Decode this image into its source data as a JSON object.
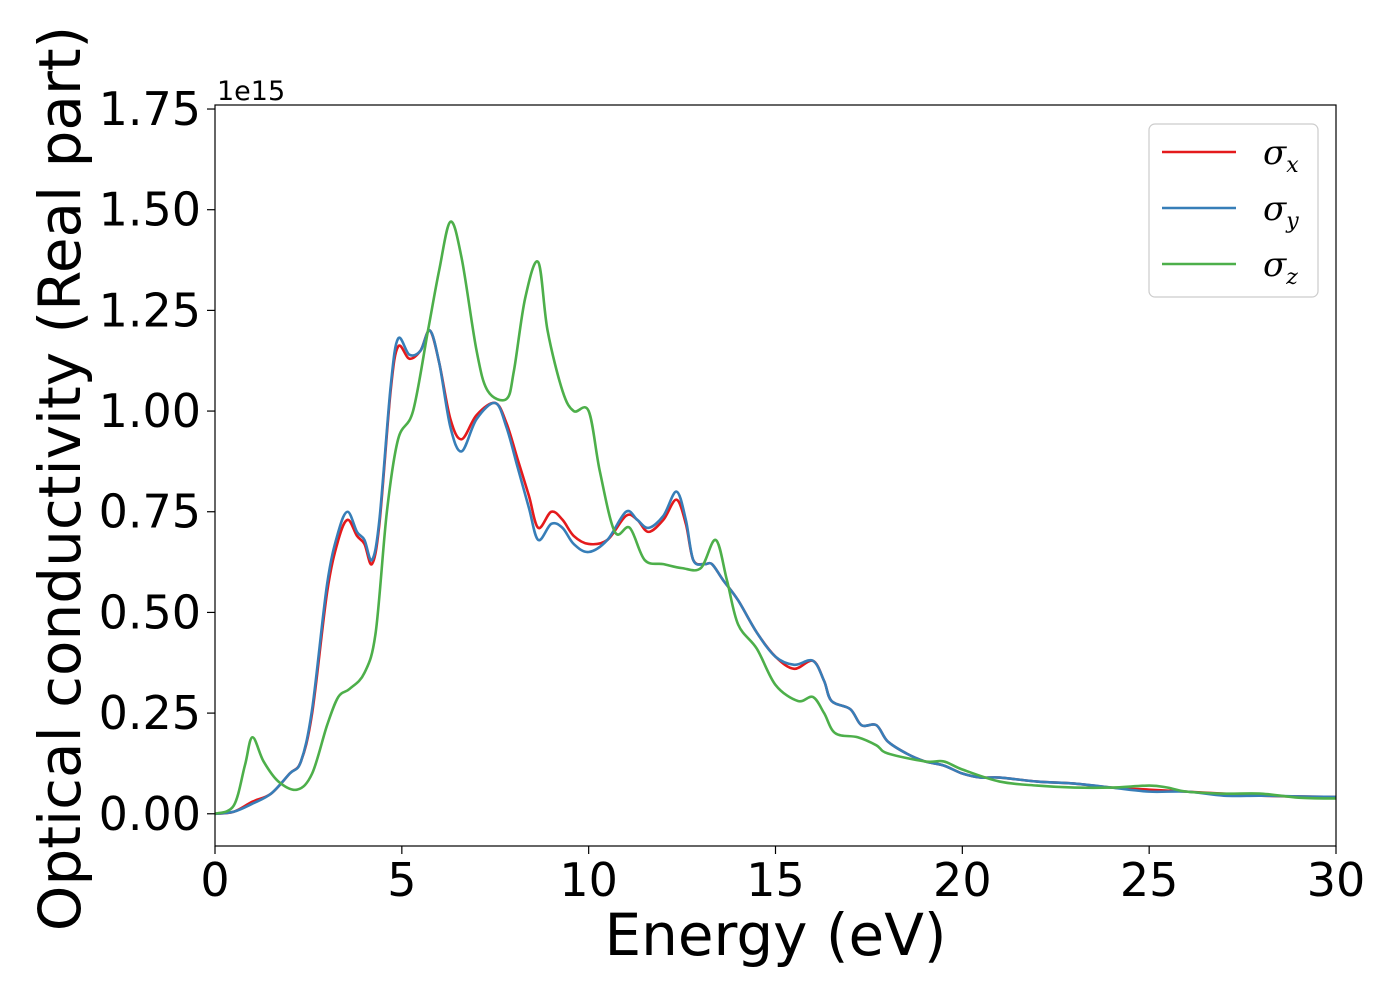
{
  "chart_data": {
    "type": "line",
    "xlabel": "Energy (eV)",
    "ylabel": "Optical conductivity (Real part)",
    "y_offset_text": "1e15",
    "xlim": [
      0,
      30
    ],
    "ylim": [
      -0.08,
      1.76
    ],
    "x_ticks": [
      0,
      5,
      10,
      15,
      20,
      25,
      30
    ],
    "x_tick_labels": [
      "0",
      "5",
      "10",
      "15",
      "20",
      "25",
      "30"
    ],
    "y_ticks": [
      0,
      0.25,
      0.5,
      0.75,
      1.0,
      1.25,
      1.5,
      1.75
    ],
    "y_tick_labels": [
      "0.00",
      "0.25",
      "0.50",
      "0.75",
      "1.00",
      "1.25",
      "1.50",
      "1.75"
    ],
    "grid": false,
    "legend_position": "top-right",
    "series": [
      {
        "name": "σ_x",
        "legend": {
          "symbol": "σ",
          "sub": "x"
        },
        "color": "#e41a1c",
        "points": [
          [
            0,
            0
          ],
          [
            0.5,
            0.005
          ],
          [
            1,
            0.03
          ],
          [
            1.5,
            0.05
          ],
          [
            2,
            0.1
          ],
          [
            2.3,
            0.13
          ],
          [
            2.6,
            0.25
          ],
          [
            3,
            0.55
          ],
          [
            3.3,
            0.68
          ],
          [
            3.55,
            0.73
          ],
          [
            3.8,
            0.69
          ],
          [
            4,
            0.67
          ],
          [
            4.2,
            0.62
          ],
          [
            4.4,
            0.72
          ],
          [
            4.7,
            1.05
          ],
          [
            4.9,
            1.16
          ],
          [
            5.2,
            1.13
          ],
          [
            5.5,
            1.15
          ],
          [
            5.75,
            1.2
          ],
          [
            6,
            1.12
          ],
          [
            6.3,
            0.98
          ],
          [
            6.6,
            0.93
          ],
          [
            7,
            0.99
          ],
          [
            7.5,
            1.02
          ],
          [
            7.8,
            0.97
          ],
          [
            8.1,
            0.88
          ],
          [
            8.4,
            0.79
          ],
          [
            8.65,
            0.71
          ],
          [
            9,
            0.75
          ],
          [
            9.3,
            0.73
          ],
          [
            9.6,
            0.69
          ],
          [
            10,
            0.67
          ],
          [
            10.5,
            0.68
          ],
          [
            11,
            0.74
          ],
          [
            11.3,
            0.73
          ],
          [
            11.6,
            0.7
          ],
          [
            12,
            0.73
          ],
          [
            12.35,
            0.78
          ],
          [
            12.6,
            0.72
          ],
          [
            12.8,
            0.63
          ],
          [
            13.1,
            0.62
          ],
          [
            13.3,
            0.62
          ],
          [
            13.6,
            0.58
          ],
          [
            14,
            0.53
          ],
          [
            14.5,
            0.45
          ],
          [
            15,
            0.39
          ],
          [
            15.5,
            0.36
          ],
          [
            16,
            0.38
          ],
          [
            16.3,
            0.33
          ],
          [
            16.5,
            0.28
          ],
          [
            17,
            0.26
          ],
          [
            17.3,
            0.22
          ],
          [
            17.7,
            0.22
          ],
          [
            18,
            0.18
          ],
          [
            18.5,
            0.15
          ],
          [
            19,
            0.13
          ],
          [
            19.5,
            0.12
          ],
          [
            20,
            0.1
          ],
          [
            20.5,
            0.09
          ],
          [
            21,
            0.09
          ],
          [
            22,
            0.08
          ],
          [
            23,
            0.075
          ],
          [
            24,
            0.065
          ],
          [
            25,
            0.06
          ],
          [
            26,
            0.055
          ],
          [
            27,
            0.05
          ],
          [
            28,
            0.045
          ],
          [
            29,
            0.043
          ],
          [
            30,
            0.042
          ]
        ]
      },
      {
        "name": "σ_y",
        "legend": {
          "symbol": "σ",
          "sub": "y"
        },
        "color": "#377eb8",
        "points": [
          [
            0,
            0
          ],
          [
            0.5,
            0.005
          ],
          [
            1,
            0.025
          ],
          [
            1.5,
            0.05
          ],
          [
            2,
            0.1
          ],
          [
            2.3,
            0.13
          ],
          [
            2.6,
            0.26
          ],
          [
            3,
            0.57
          ],
          [
            3.3,
            0.7
          ],
          [
            3.55,
            0.75
          ],
          [
            3.8,
            0.7
          ],
          [
            4,
            0.68
          ],
          [
            4.2,
            0.63
          ],
          [
            4.4,
            0.73
          ],
          [
            4.7,
            1.06
          ],
          [
            4.9,
            1.18
          ],
          [
            5.2,
            1.14
          ],
          [
            5.5,
            1.15
          ],
          [
            5.75,
            1.2
          ],
          [
            6,
            1.12
          ],
          [
            6.3,
            0.96
          ],
          [
            6.6,
            0.9
          ],
          [
            7,
            0.98
          ],
          [
            7.5,
            1.02
          ],
          [
            7.8,
            0.96
          ],
          [
            8.1,
            0.86
          ],
          [
            8.4,
            0.76
          ],
          [
            8.65,
            0.68
          ],
          [
            9,
            0.72
          ],
          [
            9.3,
            0.71
          ],
          [
            9.6,
            0.67
          ],
          [
            10,
            0.65
          ],
          [
            10.5,
            0.68
          ],
          [
            11,
            0.75
          ],
          [
            11.3,
            0.73
          ],
          [
            11.6,
            0.71
          ],
          [
            12,
            0.74
          ],
          [
            12.35,
            0.8
          ],
          [
            12.6,
            0.73
          ],
          [
            12.8,
            0.63
          ],
          [
            13.1,
            0.62
          ],
          [
            13.3,
            0.62
          ],
          [
            13.6,
            0.58
          ],
          [
            14,
            0.53
          ],
          [
            14.5,
            0.45
          ],
          [
            15,
            0.39
          ],
          [
            15.5,
            0.37
          ],
          [
            16,
            0.38
          ],
          [
            16.3,
            0.33
          ],
          [
            16.5,
            0.28
          ],
          [
            17,
            0.26
          ],
          [
            17.3,
            0.22
          ],
          [
            17.7,
            0.22
          ],
          [
            18,
            0.18
          ],
          [
            18.5,
            0.15
          ],
          [
            19,
            0.13
          ],
          [
            19.5,
            0.12
          ],
          [
            20,
            0.1
          ],
          [
            20.5,
            0.09
          ],
          [
            21,
            0.09
          ],
          [
            22,
            0.08
          ],
          [
            23,
            0.075
          ],
          [
            24,
            0.065
          ],
          [
            25,
            0.055
          ],
          [
            26,
            0.055
          ],
          [
            27,
            0.045
          ],
          [
            28,
            0.045
          ],
          [
            29,
            0.043
          ],
          [
            30,
            0.042
          ]
        ]
      },
      {
        "name": "σ_z",
        "legend": {
          "symbol": "σ",
          "sub": "z"
        },
        "color": "#4daf4a",
        "points": [
          [
            0,
            0
          ],
          [
            0.5,
            0.02
          ],
          [
            0.8,
            0.12
          ],
          [
            1,
            0.19
          ],
          [
            1.3,
            0.13
          ],
          [
            1.7,
            0.08
          ],
          [
            2.2,
            0.06
          ],
          [
            2.6,
            0.1
          ],
          [
            3,
            0.22
          ],
          [
            3.3,
            0.29
          ],
          [
            3.6,
            0.31
          ],
          [
            4,
            0.35
          ],
          [
            4.3,
            0.45
          ],
          [
            4.6,
            0.75
          ],
          [
            4.9,
            0.93
          ],
          [
            5.3,
            1.0
          ],
          [
            5.7,
            1.2
          ],
          [
            6,
            1.35
          ],
          [
            6.3,
            1.47
          ],
          [
            6.6,
            1.38
          ],
          [
            7,
            1.15
          ],
          [
            7.3,
            1.05
          ],
          [
            7.8,
            1.03
          ],
          [
            8,
            1.1
          ],
          [
            8.3,
            1.28
          ],
          [
            8.65,
            1.37
          ],
          [
            8.9,
            1.2
          ],
          [
            9.3,
            1.05
          ],
          [
            9.6,
            1.0
          ],
          [
            10,
            1.0
          ],
          [
            10.3,
            0.85
          ],
          [
            10.7,
            0.7
          ],
          [
            11.1,
            0.71
          ],
          [
            11.5,
            0.63
          ],
          [
            12,
            0.62
          ],
          [
            12.5,
            0.61
          ],
          [
            13,
            0.61
          ],
          [
            13.4,
            0.68
          ],
          [
            13.7,
            0.58
          ],
          [
            14,
            0.47
          ],
          [
            14.5,
            0.41
          ],
          [
            15,
            0.32
          ],
          [
            15.6,
            0.28
          ],
          [
            16,
            0.29
          ],
          [
            16.3,
            0.25
          ],
          [
            16.6,
            0.2
          ],
          [
            17.2,
            0.19
          ],
          [
            17.7,
            0.17
          ],
          [
            18,
            0.15
          ],
          [
            19,
            0.13
          ],
          [
            19.5,
            0.13
          ],
          [
            20,
            0.11
          ],
          [
            21,
            0.08
          ],
          [
            22,
            0.07
          ],
          [
            23,
            0.065
          ],
          [
            24,
            0.065
          ],
          [
            25,
            0.07
          ],
          [
            25.5,
            0.065
          ],
          [
            26,
            0.055
          ],
          [
            27,
            0.05
          ],
          [
            28,
            0.05
          ],
          [
            29,
            0.04
          ],
          [
            30,
            0.038
          ]
        ]
      }
    ]
  }
}
